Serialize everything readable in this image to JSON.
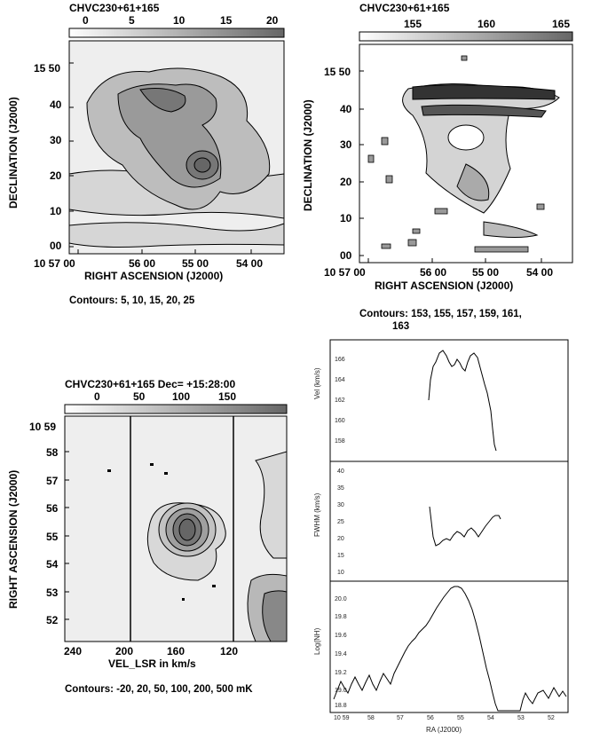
{
  "panels": {
    "top_left": {
      "title": "CHVC230+61+165",
      "wedge_ticks": [
        "0",
        "5",
        "10",
        "15",
        "20"
      ],
      "y_ticks": [
        "15 50",
        "40",
        "30",
        "20",
        "10",
        "00"
      ],
      "x_ticks": [
        "10 57 00",
        "56 00",
        "55 00",
        "54 00"
      ],
      "xlabel": "RIGHT ASCENSION (J2000)",
      "ylabel": "DECLINATION (J2000)",
      "contours": "Contours: 5, 10, 15, 20, 25"
    },
    "top_right": {
      "title": "CHVC230+61+165",
      "wedge_ticks": [
        "155",
        "160",
        "165"
      ],
      "y_ticks": [
        "15 50",
        "40",
        "30",
        "20",
        "10",
        "00"
      ],
      "x_ticks": [
        "10 57 00",
        "56 00",
        "55 00",
        "54 00"
      ],
      "xlabel": "RIGHT ASCENSION (J2000)",
      "ylabel": "DECLINATION (J2000)",
      "contours_line1": "Contours: 153, 155, 157, 159, 161,",
      "contours_line2": "163"
    },
    "bottom_left": {
      "title": "CHVC230+61+165   Dec= +15:28:00",
      "wedge_ticks": [
        "0",
        "50",
        "100",
        "150"
      ],
      "y_ticks": [
        "10 59",
        "58",
        "57",
        "56",
        "55",
        "54",
        "53",
        "52"
      ],
      "x_ticks": [
        "240",
        "200",
        "160",
        "120"
      ],
      "xlabel": "VEL_LSR in km/s",
      "ylabel": "RIGHT ASCENSION (J2000)",
      "contours": "Contours: -20, 20, 50, 100, 200, 500 mK"
    },
    "bottom_right": {
      "ylabel_top": "Vel (km/s)",
      "ylabel_mid": "FWHM (km/s)",
      "ylabel_bot": "Log(NH)",
      "xlabel": "RA (J2000)",
      "vel_ticks": [
        "166",
        "164",
        "162",
        "160",
        "158"
      ],
      "fwhm_ticks": [
        "40",
        "35",
        "30",
        "25",
        "20",
        "15",
        "10"
      ],
      "nh_ticks": [
        "20.0",
        "19.8",
        "19.6",
        "19.4",
        "19.2",
        "19.0",
        "18.8"
      ],
      "ra_ticks": [
        "10 59",
        "58",
        "57",
        "56",
        "55",
        "54",
        "53",
        "52"
      ]
    }
  }
}
